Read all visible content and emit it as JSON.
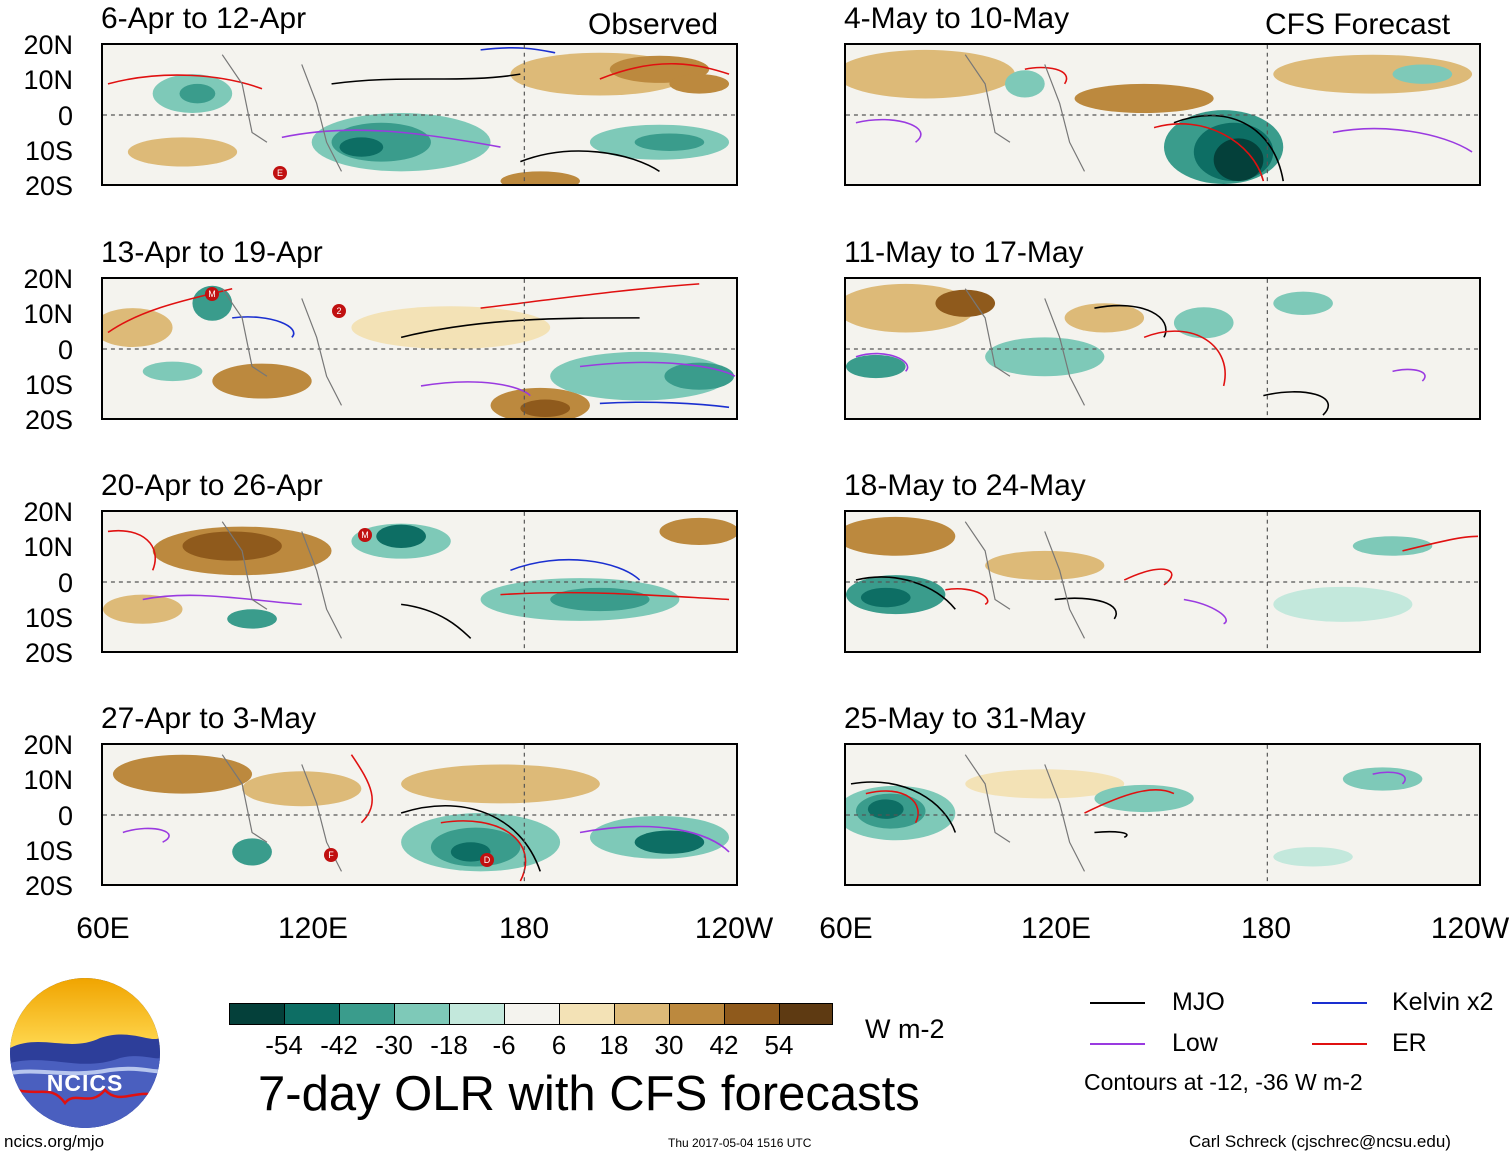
{
  "title": "7-day OLR with CFS forecasts",
  "observed_label": "Observed",
  "forecast_label": "CFS Forecast",
  "units": "W m-2",
  "panels_observed": [
    {
      "label": "6-Apr to 12-Apr"
    },
    {
      "label": "13-Apr to 19-Apr"
    },
    {
      "label": "20-Apr to 26-Apr"
    },
    {
      "label": "27-Apr to 3-May"
    }
  ],
  "panels_forecast": [
    {
      "label": "4-May to 10-May"
    },
    {
      "label": "11-May to 17-May"
    },
    {
      "label": "18-May to 24-May"
    },
    {
      "label": "25-May to 31-May"
    }
  ],
  "lat_labels": [
    "20N",
    "10N",
    "0",
    "10S",
    "20S"
  ],
  "lon_labels": [
    "60E",
    "120E",
    "180",
    "120W"
  ],
  "colorbar": {
    "labels": [
      "-54",
      "-42",
      "-30",
      "-18",
      "-6",
      "6",
      "18",
      "30",
      "42",
      "54"
    ],
    "colors": [
      "#04403a",
      "#0d6e64",
      "#3a9c8c",
      "#7ec9b8",
      "#c3e8dc",
      "#f4f3ee",
      "#f3e2b6",
      "#ddba78",
      "#bc893e",
      "#8f5a1c",
      "#5e3a12"
    ]
  },
  "legend": {
    "mjo": "MJO",
    "kelvin": "Kelvin x2",
    "low": "Low",
    "er": "ER",
    "note": "Contours at -12, -36 W m-2",
    "colors": {
      "mjo": "#000000",
      "kelvin": "#1a2fd0",
      "low": "#9a3ae0",
      "er": "#e01010"
    }
  },
  "logo": {
    "text": "NCICS"
  },
  "footer": {
    "url": "ncics.org/mjo",
    "timestamp": "Thu 2017-05-04 1516 UTC",
    "author": "Carl Schreck (cjschrec@ncsu.edu)"
  },
  "storm_markers": [
    {
      "panel": 0,
      "letter": "E"
    },
    {
      "panel": 1,
      "letter": "M"
    },
    {
      "panel": 1,
      "letter": "2"
    },
    {
      "panel": 2,
      "letter": "M"
    },
    {
      "panel": 3,
      "letter": "F"
    },
    {
      "panel": 3,
      "letter": "D"
    }
  ]
}
